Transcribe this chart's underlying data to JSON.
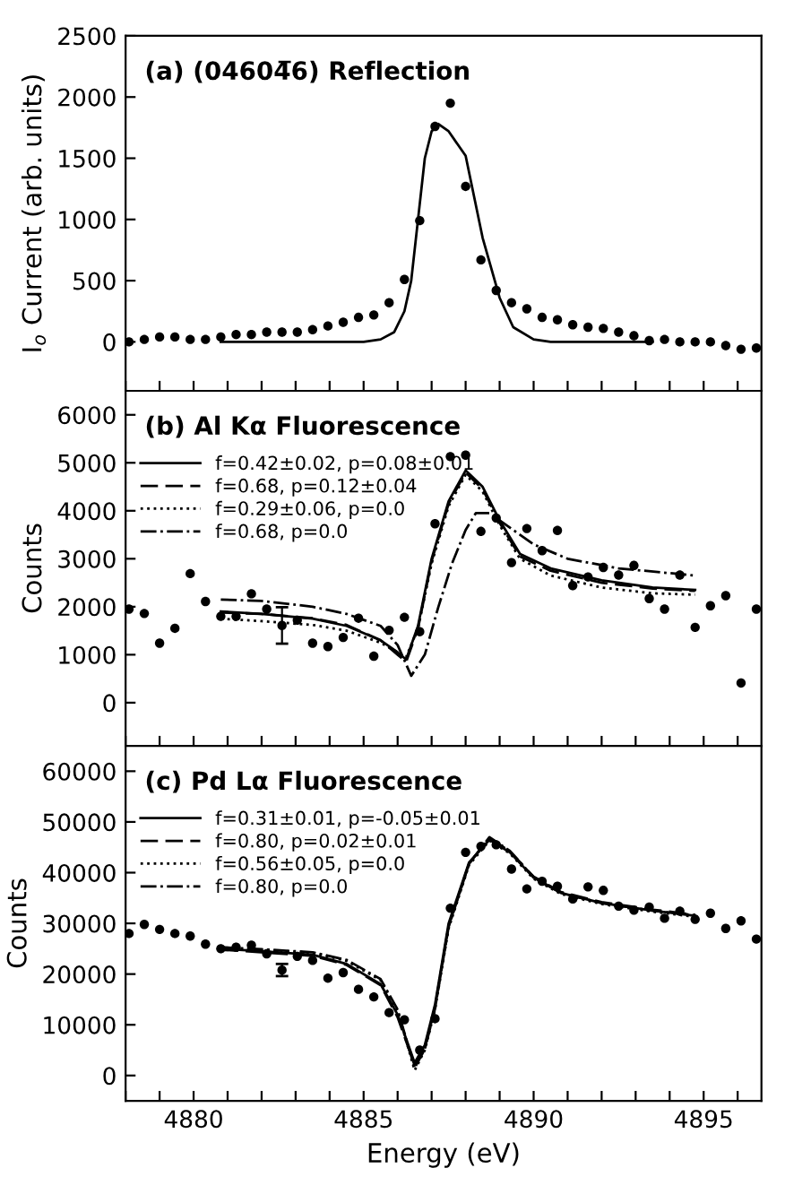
{
  "chart_data": [
    {
      "type": "scatter",
      "title": "(a) (04604̅6) Reflection",
      "ylabel": "I$_{o}$ Current (arb. units)",
      "xlim": [
        4878,
        4896.7
      ],
      "ylim": [
        -400,
        2500
      ],
      "yticks": [
        0,
        500,
        1000,
        1500,
        2000,
        2500
      ],
      "tick_labels": "y",
      "grid": false,
      "legend": false,
      "xticks": [
        {
          "value": 4878,
          "label": null
        },
        {
          "value": 4879,
          "label": null
        },
        {
          "value": 4880,
          "label": null
        },
        {
          "value": 4881,
          "label": null
        },
        {
          "value": 4882,
          "label": null
        },
        {
          "value": 4883,
          "label": null
        },
        {
          "value": 4884,
          "label": null
        },
        {
          "value": 4885,
          "label": null
        },
        {
          "value": 4886,
          "label": null
        },
        {
          "value": 4887,
          "label": null
        },
        {
          "value": 4888,
          "label": null
        },
        {
          "value": 4889,
          "label": null
        },
        {
          "value": 4890,
          "label": null
        },
        {
          "value": 4891,
          "label": null
        },
        {
          "value": 4892,
          "label": null
        },
        {
          "value": 4893,
          "label": null
        },
        {
          "value": 4894,
          "label": null
        },
        {
          "value": 4895,
          "label": null
        },
        {
          "value": 4896,
          "label": null
        }
      ],
      "series": [
        {
          "type": "scatter",
          "color": "#000000",
          "marker": "circle",
          "x": [
            4878.1,
            4878.55,
            4879.0,
            4879.45,
            4879.9,
            4880.35,
            4880.8,
            4881.25,
            4881.7,
            4882.15,
            4882.6,
            4883.05,
            4883.5,
            4883.95,
            4884.4,
            4884.85,
            4885.3,
            4885.75,
            4886.2,
            4886.65,
            4887.1,
            4887.55,
            4888.0,
            4888.45,
            4888.9,
            4889.35,
            4889.8,
            4890.25,
            4890.7,
            4891.15,
            4891.6,
            4892.05,
            4892.5,
            4892.95,
            4893.4,
            4893.85,
            4894.3,
            4894.75,
            4895.2,
            4895.65,
            4896.1,
            4896.55
          ],
          "values": [
            0,
            20,
            40,
            40,
            20,
            20,
            40,
            60,
            60,
            80,
            80,
            80,
            100,
            130,
            160,
            200,
            220,
            320,
            510,
            990,
            1760,
            1950,
            1270,
            670,
            420,
            320,
            270,
            200,
            180,
            140,
            120,
            110,
            80,
            50,
            10,
            20,
            0,
            0,
            0,
            -30,
            -60,
            -50
          ]
        },
        {
          "type": "line",
          "color": "#000000",
          "line_style": "solid",
          "x": [
            4880.8,
            4885.0,
            4885.5,
            4885.9,
            4886.2,
            4886.4,
            4886.6,
            4886.8,
            4887.0,
            4887.2,
            4887.5,
            4888.0,
            4888.5,
            4889.0,
            4889.4,
            4890.0,
            4890.5,
            4893.5
          ],
          "values": [
            0,
            0,
            20,
            80,
            250,
            500,
            1000,
            1500,
            1720,
            1780,
            1720,
            1520,
            850,
            360,
            120,
            20,
            0,
            0
          ]
        }
      ]
    },
    {
      "type": "scatter",
      "title": "(b) Al Kα Fluorescence",
      "ylabel": "Counts",
      "xlim": [
        4878,
        4896.7
      ],
      "ylim": [
        -900,
        6500
      ],
      "yticks": [
        0,
        1000,
        2000,
        3000,
        4000,
        5000,
        6000
      ],
      "tick_labels": "y",
      "grid": false,
      "legend": "top left",
      "xticks": [
        {
          "value": 4878,
          "label": null
        },
        {
          "value": 4879,
          "label": null
        },
        {
          "value": 4880,
          "label": null
        },
        {
          "value": 4881,
          "label": null
        },
        {
          "value": 4882,
          "label": null
        },
        {
          "value": 4883,
          "label": null
        },
        {
          "value": 4884,
          "label": null
        },
        {
          "value": 4885,
          "label": null
        },
        {
          "value": 4886,
          "label": null
        },
        {
          "value": 4887,
          "label": null
        },
        {
          "value": 4888,
          "label": null
        },
        {
          "value": 4889,
          "label": null
        },
        {
          "value": 4890,
          "label": null
        },
        {
          "value": 4891,
          "label": null
        },
        {
          "value": 4892,
          "label": null
        },
        {
          "value": 4893,
          "label": null
        },
        {
          "value": 4894,
          "label": null
        },
        {
          "value": 4895,
          "label": null
        },
        {
          "value": 4896,
          "label": null
        }
      ],
      "series": [
        {
          "type": "scatter",
          "color": "#000000",
          "marker": "circle",
          "x": [
            4878.1,
            4878.55,
            4879.0,
            4879.45,
            4879.9,
            4880.35,
            4880.8,
            4881.25,
            4881.7,
            4882.15,
            4882.6,
            4883.05,
            4883.5,
            4883.95,
            4884.4,
            4884.85,
            4885.3,
            4885.75,
            4886.2,
            4886.65,
            4887.1,
            4887.55,
            4888.0,
            4888.45,
            4888.9,
            4889.35,
            4889.8,
            4890.25,
            4890.7,
            4891.15,
            4891.6,
            4892.05,
            4892.5,
            4892.95,
            4893.4,
            4893.85,
            4894.3,
            4894.75,
            4895.2,
            4895.65,
            4896.1,
            4896.55
          ],
          "values": [
            1950,
            1860,
            1240,
            1550,
            2690,
            2110,
            1800,
            1800,
            2270,
            1950,
            1610,
            1720,
            1240,
            1170,
            1360,
            1760,
            970,
            1510,
            1780,
            1480,
            3730,
            5130,
            5160,
            3570,
            3850,
            2920,
            3630,
            3170,
            3590,
            2440,
            2620,
            2820,
            2660,
            2860,
            2170,
            1950,
            2660,
            1570,
            2020,
            2230,
            410,
            1950
          ],
          "errors": [
            null,
            null,
            null,
            null,
            null,
            null,
            null,
            null,
            null,
            null,
            380,
            null,
            null,
            null,
            null,
            null,
            null,
            null,
            null,
            null,
            null,
            null,
            null,
            null,
            null,
            null,
            null,
            null,
            null,
            null,
            null,
            null,
            null,
            null,
            null,
            null,
            null,
            null,
            null,
            null,
            null,
            null
          ]
        },
        {
          "type": "line",
          "name": "f=0.42±0.02, p=0.08±0.01",
          "color": "#000000",
          "line_style": "solid",
          "x": [
            4880.8,
            4882,
            4883.5,
            4884.5,
            4885.5,
            4886.0,
            4886.25,
            4886.6,
            4887.0,
            4887.5,
            4888.0,
            4888.5,
            4889.0,
            4889.6,
            4890.5,
            4892,
            4893.5,
            4894.75
          ],
          "values": [
            1900,
            1850,
            1750,
            1600,
            1300,
            1050,
            900,
            1600,
            3000,
            4200,
            4840,
            4500,
            3800,
            3100,
            2800,
            2550,
            2400,
            2350
          ]
        },
        {
          "type": "line",
          "name": "f=0.68, p=0.12±0.04",
          "color": "#000000",
          "line_style": "dashed",
          "x": [
            4880.8,
            4882,
            4883.5,
            4884.5,
            4885.5,
            4886.0,
            4886.25,
            4886.6,
            4887.0,
            4887.5,
            4888.0,
            4888.5,
            4889.0,
            4889.6,
            4890.5,
            4892,
            4893.5,
            4894.75
          ],
          "values": [
            1880,
            1850,
            1760,
            1620,
            1300,
            1000,
            850,
            1550,
            2950,
            4150,
            4800,
            4450,
            3750,
            3050,
            2750,
            2500,
            2380,
            2330
          ]
        },
        {
          "type": "line",
          "name": "f=0.29±0.06, p=0.0",
          "color": "#000000",
          "line_style": "dotted",
          "x": [
            4880.8,
            4882,
            4883.5,
            4884.5,
            4885.5,
            4886.0,
            4886.25,
            4886.6,
            4887.0,
            4887.5,
            4888.0,
            4888.5,
            4889.0,
            4889.6,
            4890.5,
            4892,
            4893.5,
            4894.75
          ],
          "values": [
            1750,
            1700,
            1620,
            1500,
            1250,
            1050,
            950,
            1550,
            2900,
            4100,
            4750,
            4400,
            3700,
            3000,
            2650,
            2400,
            2280,
            2250
          ]
        },
        {
          "type": "line",
          "name": "f=0.68, p=0.0",
          "color": "#000000",
          "line_style": "dashdot",
          "x": [
            4880.8,
            4882,
            4883.5,
            4884.5,
            4885.5,
            4886.0,
            4886.4,
            4886.8,
            4887.2,
            4887.6,
            4888.0,
            4888.3,
            4888.7,
            4889.2,
            4890,
            4891,
            4892.5,
            4894.75
          ],
          "values": [
            2150,
            2120,
            2000,
            1850,
            1600,
            1200,
            560,
            1000,
            2000,
            2900,
            3600,
            3950,
            3950,
            3700,
            3300,
            3000,
            2800,
            2650
          ]
        }
      ]
    },
    {
      "type": "scatter",
      "title": "(c) Pd Lα Fluorescence",
      "ylabel": "Counts",
      "xlabel": "Energy (eV)",
      "xlim": [
        4878,
        4896.7
      ],
      "ylim": [
        -5000,
        65000
      ],
      "yticks": [
        0,
        10000,
        20000,
        30000,
        40000,
        50000,
        60000
      ],
      "grid": false,
      "legend": "top left",
      "xticks": [
        {
          "value": 4878,
          "label": null
        },
        {
          "value": 4879,
          "label": null
        },
        4880,
        {
          "value": 4881,
          "label": null
        },
        {
          "value": 4882,
          "label": null
        },
        {
          "value": 4883,
          "label": null
        },
        {
          "value": 4884,
          "label": null
        },
        4885,
        {
          "value": 4886,
          "label": null
        },
        {
          "value": 4887,
          "label": null
        },
        {
          "value": 4888,
          "label": null
        },
        {
          "value": 4889,
          "label": null
        },
        4890,
        {
          "value": 4891,
          "label": null
        },
        {
          "value": 4892,
          "label": null
        },
        {
          "value": 4893,
          "label": null
        },
        {
          "value": 4894,
          "label": null
        },
        4895,
        {
          "value": 4896,
          "label": null
        }
      ],
      "series": [
        {
          "type": "scatter",
          "color": "#000000",
          "marker": "circle",
          "x": [
            4878.1,
            4878.55,
            4879.0,
            4879.45,
            4879.9,
            4880.35,
            4880.8,
            4881.25,
            4881.7,
            4882.15,
            4882.6,
            4883.05,
            4883.5,
            4883.95,
            4884.4,
            4884.85,
            4885.3,
            4885.75,
            4886.2,
            4886.65,
            4887.1,
            4887.55,
            4888.0,
            4888.45,
            4888.9,
            4889.35,
            4889.8,
            4890.25,
            4890.7,
            4891.15,
            4891.6,
            4892.05,
            4892.5,
            4892.95,
            4893.4,
            4893.85,
            4894.3,
            4894.75,
            4895.2,
            4895.65,
            4896.1,
            4896.55
          ],
          "values": [
            28000,
            29800,
            28800,
            28000,
            27500,
            25900,
            25000,
            25300,
            25700,
            24000,
            20800,
            23500,
            22700,
            19200,
            20300,
            17000,
            15500,
            12400,
            11000,
            5000,
            11200,
            33000,
            44000,
            45200,
            45500,
            40700,
            36800,
            38300,
            37300,
            34800,
            37200,
            36500,
            33400,
            32600,
            33200,
            31000,
            32400,
            30800,
            32000,
            29000,
            30500,
            26900
          ],
          "errors": [
            null,
            null,
            null,
            null,
            null,
            null,
            null,
            null,
            null,
            null,
            1200,
            null,
            null,
            null,
            null,
            null,
            null,
            null,
            null,
            null,
            null,
            null,
            null,
            null,
            null,
            null,
            null,
            null,
            null,
            null,
            null,
            null,
            null,
            null,
            null,
            null,
            null,
            null,
            null,
            null,
            null,
            null
          ]
        },
        {
          "type": "line",
          "name": "f=0.31±0.01, p=-0.05±0.01",
          "color": "#000000",
          "line_style": "solid",
          "x": [
            4880.8,
            4882,
            4883.5,
            4884.5,
            4885.5,
            4886.0,
            4886.5,
            4886.8,
            4887.1,
            4887.5,
            4888.1,
            4888.7,
            4889.3,
            4890.0,
            4890.8,
            4892,
            4893.5,
            4894.75
          ],
          "values": [
            25000,
            24500,
            23800,
            22000,
            18000,
            12000,
            2500,
            6000,
            14000,
            30000,
            42000,
            46500,
            44000,
            39000,
            36000,
            34000,
            32500,
            31500
          ]
        },
        {
          "type": "line",
          "name": "f=0.80, p=0.02±0.01",
          "color": "#000000",
          "line_style": "dashed",
          "x": [
            4880.8,
            4882,
            4883.5,
            4884.5,
            4885.5,
            4886.0,
            4886.5,
            4886.8,
            4887.1,
            4887.5,
            4888.1,
            4888.7,
            4889.3,
            4890.0,
            4890.8,
            4892,
            4893.5,
            4894.75
          ],
          "values": [
            24800,
            24300,
            23600,
            21800,
            17800,
            11500,
            2000,
            5500,
            13500,
            29500,
            41800,
            46800,
            44200,
            39200,
            36200,
            34200,
            32700,
            31700
          ]
        },
        {
          "type": "line",
          "name": "f=0.56±0.05, p=0.0",
          "color": "#000000",
          "line_style": "dotted",
          "x": [
            4880.8,
            4882,
            4883.5,
            4884.5,
            4885.5,
            4886.0,
            4886.5,
            4886.8,
            4887.1,
            4887.5,
            4888.1,
            4888.7,
            4889.3,
            4890.0,
            4890.8,
            4892,
            4893.5,
            4894.75
          ],
          "values": [
            25200,
            24800,
            24200,
            22600,
            18800,
            12800,
            1000,
            5000,
            13000,
            29000,
            41500,
            46300,
            43800,
            38800,
            35800,
            33800,
            32300,
            31300
          ]
        },
        {
          "type": "line",
          "name": "f=0.80, p=0.0",
          "color": "#000000",
          "line_style": "dashdot",
          "x": [
            4880.8,
            4882,
            4883.5,
            4884.5,
            4885.5,
            4886.0,
            4886.5,
            4886.8,
            4887.1,
            4887.5,
            4888.1,
            4888.7,
            4889.3,
            4890.0,
            4890.8,
            4892,
            4893.5,
            4894.75
          ],
          "values": [
            25300,
            24900,
            24300,
            22800,
            19000,
            13000,
            1500,
            5200,
            13200,
            29300,
            41700,
            47000,
            44300,
            39100,
            36000,
            34000,
            32500,
            31600
          ]
        }
      ]
    }
  ]
}
